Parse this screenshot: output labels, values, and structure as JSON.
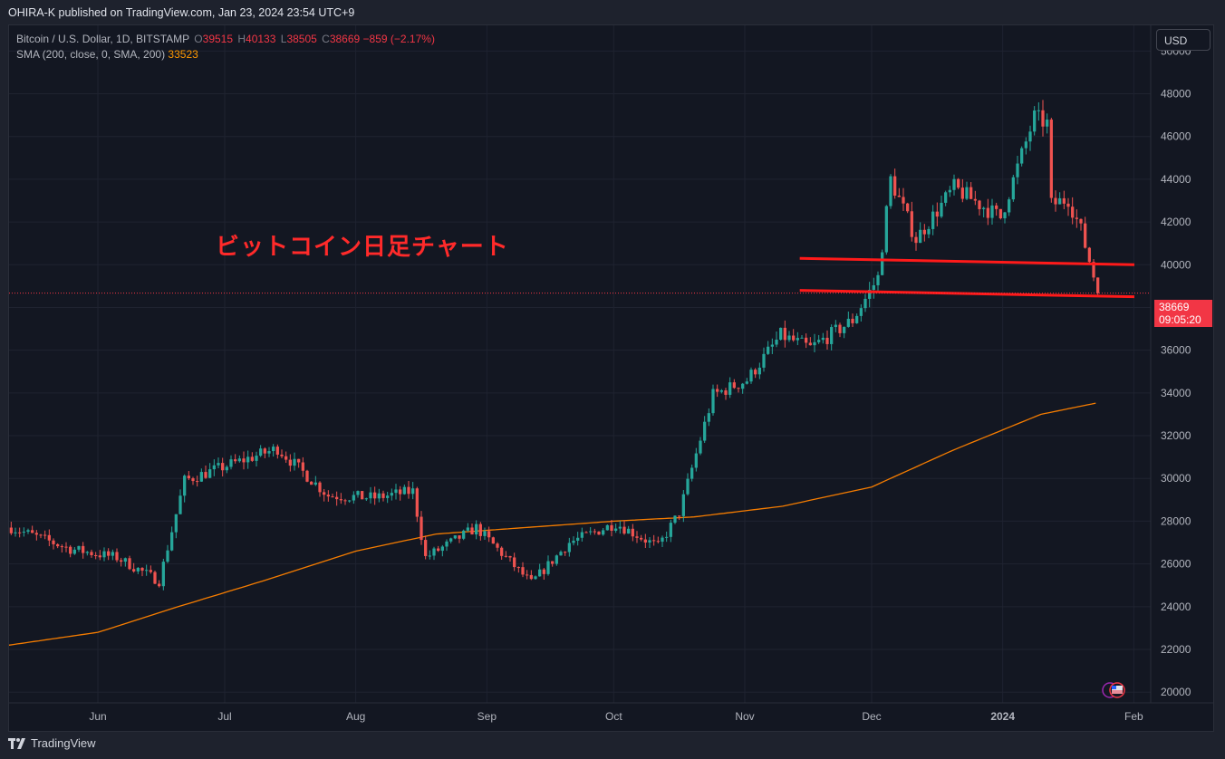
{
  "header": {
    "text": "OHIRA-K published on TradingView.com, Jan 23, 2024 23:54 UTC+9"
  },
  "legend": {
    "symbol": "Bitcoin / U.S. Dollar, 1D, BITSTAMP",
    "o_label": "O",
    "o_value": "39515",
    "h_label": "H",
    "h_value": "40133",
    "l_label": "L",
    "l_value": "38505",
    "c_label": "C",
    "c_value": "38669",
    "change": "−859 (−2.17%)",
    "sma_label": "SMA (200, close, 0, SMA, 200)",
    "sma_value": "33523"
  },
  "currency": "USD",
  "annotation": "ビットコイン日足チャート",
  "last_price": {
    "price": "38669",
    "countdown": "09:05:20"
  },
  "footer": {
    "brand": "TradingView"
  },
  "colors": {
    "up": "#26a69a",
    "down": "#ef5350",
    "sma": "#f57c00",
    "trendline": "#ff1a1a",
    "background": "#131722"
  },
  "chart_data": {
    "type": "candlestick",
    "x_ticks": [
      "Jun",
      "Jul",
      "Aug",
      "Sep",
      "Oct",
      "Nov",
      "Dec",
      "2024",
      "Feb"
    ],
    "y_ticks": [
      20000,
      22000,
      24000,
      26000,
      28000,
      30000,
      32000,
      34000,
      36000,
      38000,
      40000,
      42000,
      44000,
      46000,
      48000,
      50000
    ],
    "ylim": [
      19500,
      51200
    ],
    "grid": true,
    "trend_lines": [
      {
        "from": [
          "2023-11-14",
          40300
        ],
        "to": [
          "2024-01-24",
          40000
        ]
      },
      {
        "from": [
          "2023-11-14",
          38800
        ],
        "to": [
          "2024-01-24",
          38500
        ]
      }
    ],
    "sma": [
      [
        "2023-05-11",
        22200
      ],
      [
        "2023-06-01",
        22800
      ],
      [
        "2023-06-20",
        24000
      ],
      [
        "2023-07-10",
        25200
      ],
      [
        "2023-08-01",
        26600
      ],
      [
        "2023-08-20",
        27400
      ],
      [
        "2023-09-10",
        27700
      ],
      [
        "2023-10-01",
        28000
      ],
      [
        "2023-10-20",
        28200
      ],
      [
        "2023-11-10",
        28700
      ],
      [
        "2023-12-01",
        29600
      ],
      [
        "2023-12-20",
        31300
      ],
      [
        "2024-01-10",
        33000
      ],
      [
        "2024-01-23",
        33523
      ]
    ],
    "key_prices": [
      [
        "2023-05-11",
        27700
      ],
      [
        "2023-05-25",
        26700
      ],
      [
        "2023-06-05",
        26300
      ],
      [
        "2023-06-15",
        25200
      ],
      [
        "2023-06-21",
        29900
      ],
      [
        "2023-07-01",
        30600
      ],
      [
        "2023-07-13",
        31400
      ],
      [
        "2023-07-25",
        29200
      ],
      [
        "2023-08-05",
        29100
      ],
      [
        "2023-08-14",
        29400
      ],
      [
        "2023-08-17",
        26300
      ],
      [
        "2023-08-29",
        27700
      ],
      [
        "2023-09-11",
        25100
      ],
      [
        "2023-09-20",
        27000
      ],
      [
        "2023-10-01",
        27900
      ],
      [
        "2023-10-11",
        26800
      ],
      [
        "2023-10-16",
        28400
      ],
      [
        "2023-10-24",
        33900
      ],
      [
        "2023-11-01",
        34600
      ],
      [
        "2023-11-09",
        36700
      ],
      [
        "2023-11-16",
        36100
      ],
      [
        "2023-11-26",
        37400
      ],
      [
        "2023-12-02",
        39400
      ],
      [
        "2023-12-05",
        44000
      ],
      [
        "2023-12-11",
        41200
      ],
      [
        "2023-12-20",
        43600
      ],
      [
        "2023-12-31",
        42200
      ],
      [
        "2024-01-08",
        46900
      ],
      [
        "2024-01-11",
        46600
      ],
      [
        "2024-01-12",
        42800
      ],
      [
        "2024-01-16",
        43100
      ],
      [
        "2024-01-19",
        41600
      ],
      [
        "2024-01-22",
        39500
      ],
      [
        "2024-01-23",
        38669
      ]
    ]
  }
}
